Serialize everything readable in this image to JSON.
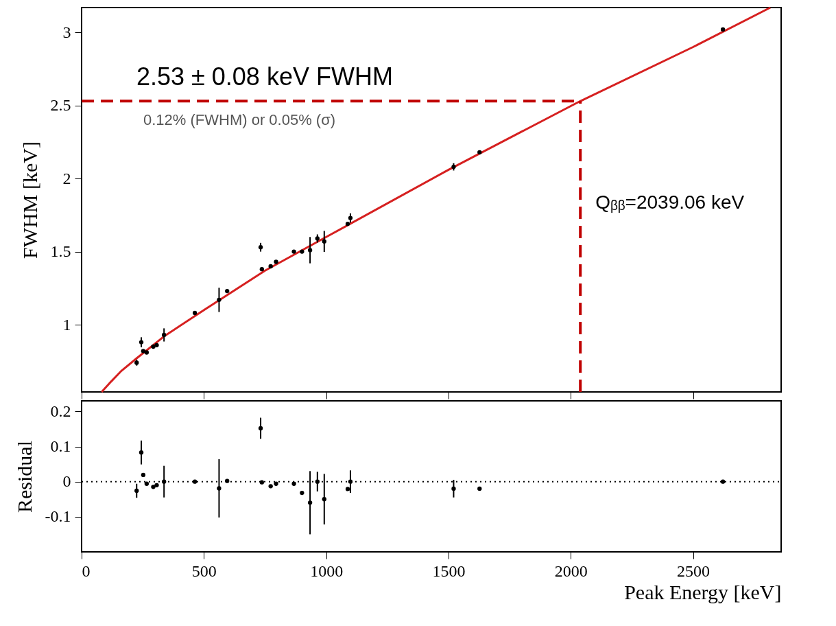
{
  "chart_data": [
    {
      "type": "scatter",
      "ylabel": "FWHM [keV]",
      "xlim": [
        0,
        2860
      ],
      "ylim": [
        0.54,
        3.17
      ],
      "xticks": [
        0,
        500,
        1000,
        1500,
        2000,
        2500
      ],
      "yticks": [
        1,
        1.5,
        2,
        2.5,
        3
      ],
      "tick_labels": "y",
      "grid": false,
      "marker": "circle",
      "series": [
        {
          "color": "#000000",
          "x": [
            225,
            244,
            252,
            266,
            293,
            307,
            337,
            463,
            562,
            595,
            732,
            737,
            773,
            795,
            868,
            901,
            934,
            964,
            992,
            1088,
            1099,
            1521,
            1627,
            2622
          ],
          "values": [
            0.74,
            0.88,
            0.82,
            0.81,
            0.85,
            0.86,
            0.93,
            1.08,
            1.17,
            1.23,
            1.53,
            1.38,
            1.4,
            1.43,
            1.5,
            1.5,
            1.51,
            1.59,
            1.57,
            1.69,
            1.73,
            2.08,
            2.18,
            3.02
          ],
          "errors": [
            0.02,
            0.034,
            null,
            null,
            null,
            null,
            0.045,
            null,
            0.083,
            null,
            0.03,
            null,
            null,
            null,
            null,
            null,
            0.09,
            0.028,
            0.072,
            null,
            0.032,
            0.025,
            null,
            null
          ]
        },
        {
          "type": "line",
          "marker": "none",
          "color": "#d62020",
          "x": [
            82,
            120,
            160,
            225,
            337,
            500,
            750,
            1000,
            1500,
            2039,
            2500,
            2816
          ],
          "values": [
            0.54,
            0.61,
            0.68,
            0.77,
            0.92,
            1.1,
            1.37,
            1.6,
            2.06,
            2.53,
            2.9,
            3.17
          ]
        }
      ],
      "ref_lines": [
        {
          "axis": "y",
          "value": 2.53,
          "label": "2.53 ± 0.08 keV FWHM",
          "color": "#c00000",
          "line_style": "dashed"
        },
        {
          "axis": "x",
          "value": 2039.06,
          "label": "Qᵦᵦ=2039.06 keV",
          "color": "#c00000",
          "line_style": "dashed"
        }
      ],
      "annotations": [
        "0.12% (FWHM) or 0.05% (σ)"
      ]
    },
    {
      "type": "scatter",
      "xlabel": "Peak Energy [keV]",
      "ylabel": "Residual",
      "xlim": [
        0,
        2860
      ],
      "ylim": [
        -0.2,
        0.23
      ],
      "xticks": [
        0,
        500,
        1000,
        1500,
        2000,
        2500
      ],
      "yticks": [
        -0.1,
        0,
        0.1,
        0.2
      ],
      "grid": false,
      "marker": "circle",
      "series": [
        {
          "color": "#000000",
          "x": [
            225,
            244,
            252,
            266,
            293,
            307,
            337,
            463,
            562,
            595,
            732,
            737,
            773,
            795,
            868,
            901,
            934,
            964,
            992,
            1088,
            1099,
            1521,
            1627,
            2622
          ],
          "values": [
            -0.026,
            0.083,
            0.019,
            -0.006,
            -0.015,
            -0.01,
            0,
            0,
            -0.019,
            0.002,
            0.152,
            -0.002,
            -0.013,
            -0.006,
            -0.006,
            -0.032,
            -0.06,
            0,
            -0.05,
            -0.021,
            0,
            -0.02,
            -0.02,
            0
          ],
          "errors": [
            0.02,
            0.034,
            null,
            null,
            null,
            null,
            0.045,
            null,
            0.083,
            null,
            0.03,
            null,
            null,
            null,
            null,
            null,
            0.09,
            0.028,
            0.072,
            null,
            0.032,
            0.025,
            null,
            null
          ]
        }
      ],
      "ref_lines": [
        {
          "axis": "y",
          "value": 0,
          "color": "#000000",
          "line_style": "dotted"
        }
      ]
    }
  ]
}
